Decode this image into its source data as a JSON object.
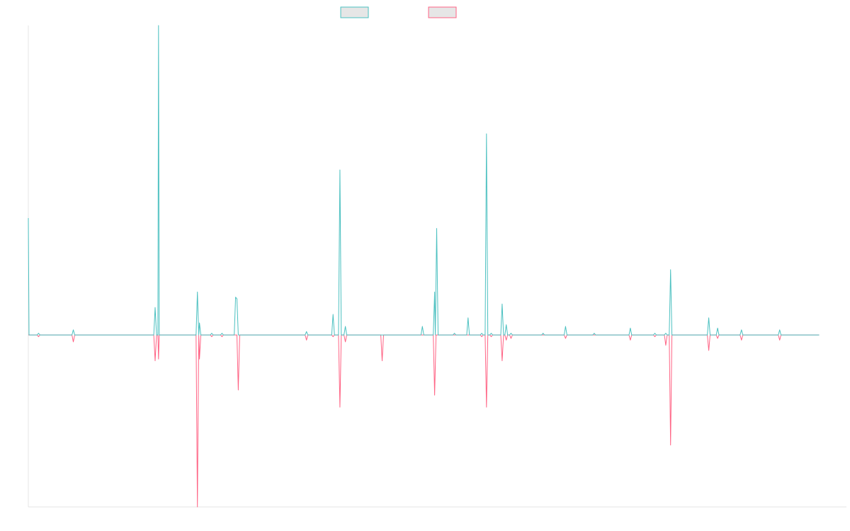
{
  "chart_data": {
    "type": "line",
    "legend_position": "top-center",
    "grid": false,
    "x_range": [
      0,
      1200
    ],
    "ylim": [
      -100,
      180
    ],
    "series": [
      {
        "key": "positive",
        "color": "#4bc0c0",
        "fill": "#e6e6e6",
        "points": [
          [
            0,
            68
          ],
          [
            1,
            0
          ],
          [
            13,
            0
          ],
          [
            15,
            1
          ],
          [
            17,
            0
          ],
          [
            64,
            0
          ],
          [
            66,
            3
          ],
          [
            68,
            0
          ],
          [
            184,
            0
          ],
          [
            186,
            16
          ],
          [
            188,
            0
          ],
          [
            190,
            0
          ],
          [
            191,
            180
          ],
          [
            192,
            0
          ],
          [
            194,
            0
          ],
          [
            246,
            0
          ],
          [
            248,
            25
          ],
          [
            250,
            0
          ],
          [
            251,
            7
          ],
          [
            253,
            0
          ],
          [
            267,
            0
          ],
          [
            269,
            1
          ],
          [
            271,
            0
          ],
          [
            282,
            0
          ],
          [
            284,
            1
          ],
          [
            286,
            0
          ],
          [
            302,
            0
          ],
          [
            304,
            22
          ],
          [
            306,
            21
          ],
          [
            308,
            0
          ],
          [
            406,
            0
          ],
          [
            408,
            2
          ],
          [
            410,
            0
          ],
          [
            445,
            0
          ],
          [
            447,
            12
          ],
          [
            449,
            0
          ],
          [
            455,
            0
          ],
          [
            457,
            96
          ],
          [
            459,
            0
          ],
          [
            463,
            0
          ],
          [
            465,
            5
          ],
          [
            467,
            0
          ],
          [
            576,
            0
          ],
          [
            578,
            5
          ],
          [
            580,
            0
          ],
          [
            594,
            0
          ],
          [
            596,
            25
          ],
          [
            597,
            0
          ],
          [
            599,
            62
          ],
          [
            601,
            0
          ],
          [
            623,
            0
          ],
          [
            625,
            1
          ],
          [
            627,
            0
          ],
          [
            643,
            0
          ],
          [
            645,
            10
          ],
          [
            647,
            0
          ],
          [
            663,
            0
          ],
          [
            665,
            1
          ],
          [
            667,
            0
          ],
          [
            670,
            0
          ],
          [
            672,
            117
          ],
          [
            674,
            0
          ],
          [
            677,
            0
          ],
          [
            679,
            1
          ],
          [
            681,
            0
          ],
          [
            693,
            0
          ],
          [
            695,
            18
          ],
          [
            697,
            0
          ],
          [
            699,
            0
          ],
          [
            701,
            6
          ],
          [
            703,
            0
          ],
          [
            706,
            0
          ],
          [
            708,
            1
          ],
          [
            710,
            0
          ],
          [
            753,
            0
          ],
          [
            755,
            1
          ],
          [
            757,
            0
          ],
          [
            786,
            0
          ],
          [
            788,
            5
          ],
          [
            790,
            0
          ],
          [
            828,
            0
          ],
          [
            830,
            1
          ],
          [
            832,
            0
          ],
          [
            881,
            0
          ],
          [
            883,
            4
          ],
          [
            885,
            0
          ],
          [
            917,
            0
          ],
          [
            919,
            1
          ],
          [
            921,
            0
          ],
          [
            933,
            0
          ],
          [
            935,
            1
          ],
          [
            937,
            0
          ],
          [
            940,
            0
          ],
          [
            942,
            38
          ],
          [
            944,
            0
          ],
          [
            996,
            0
          ],
          [
            998,
            10
          ],
          [
            1000,
            0
          ],
          [
            1009,
            0
          ],
          [
            1011,
            4
          ],
          [
            1013,
            0
          ],
          [
            1044,
            0
          ],
          [
            1046,
            3
          ],
          [
            1048,
            0
          ],
          [
            1100,
            0
          ],
          [
            1102,
            3
          ],
          [
            1104,
            0
          ],
          [
            1160,
            0
          ]
        ]
      },
      {
        "key": "negative",
        "color": "#ff6384",
        "fill": "#e6e6e6",
        "points": [
          [
            0,
            0
          ],
          [
            13,
            0
          ],
          [
            15,
            -1
          ],
          [
            17,
            0
          ],
          [
            64,
            0
          ],
          [
            66,
            -4
          ],
          [
            68,
            0
          ],
          [
            184,
            0
          ],
          [
            186,
            -15
          ],
          [
            188,
            0
          ],
          [
            190,
            0
          ],
          [
            191,
            -14
          ],
          [
            192,
            0
          ],
          [
            246,
            0
          ],
          [
            248,
            -100
          ],
          [
            250,
            0
          ],
          [
            251,
            -14
          ],
          [
            253,
            0
          ],
          [
            267,
            0
          ],
          [
            269,
            -1
          ],
          [
            271,
            0
          ],
          [
            282,
            0
          ],
          [
            284,
            -1
          ],
          [
            286,
            0
          ],
          [
            306,
            0
          ],
          [
            308,
            -32
          ],
          [
            310,
            0
          ],
          [
            406,
            0
          ],
          [
            408,
            -3
          ],
          [
            410,
            0
          ],
          [
            445,
            0
          ],
          [
            447,
            -1
          ],
          [
            449,
            0
          ],
          [
            455,
            0
          ],
          [
            457,
            -42
          ],
          [
            459,
            0
          ],
          [
            463,
            0
          ],
          [
            465,
            -4
          ],
          [
            467,
            0
          ],
          [
            517,
            0
          ],
          [
            519,
            -15
          ],
          [
            521,
            0
          ],
          [
            594,
            0
          ],
          [
            596,
            -35
          ],
          [
            598,
            0
          ],
          [
            663,
            0
          ],
          [
            665,
            -1
          ],
          [
            667,
            0
          ],
          [
            670,
            0
          ],
          [
            672,
            -42
          ],
          [
            674,
            0
          ],
          [
            677,
            0
          ],
          [
            679,
            -1
          ],
          [
            681,
            0
          ],
          [
            693,
            0
          ],
          [
            695,
            -15
          ],
          [
            697,
            0
          ],
          [
            699,
            0
          ],
          [
            701,
            -3
          ],
          [
            703,
            0
          ],
          [
            706,
            0
          ],
          [
            708,
            -2
          ],
          [
            710,
            0
          ],
          [
            786,
            0
          ],
          [
            788,
            -2
          ],
          [
            790,
            0
          ],
          [
            881,
            0
          ],
          [
            883,
            -3
          ],
          [
            885,
            0
          ],
          [
            917,
            0
          ],
          [
            919,
            -1
          ],
          [
            921,
            0
          ],
          [
            933,
            0
          ],
          [
            935,
            -6
          ],
          [
            937,
            0
          ],
          [
            940,
            0
          ],
          [
            942,
            -64
          ],
          [
            944,
            0
          ],
          [
            996,
            0
          ],
          [
            998,
            -9
          ],
          [
            1000,
            0
          ],
          [
            1009,
            0
          ],
          [
            1011,
            -2
          ],
          [
            1013,
            0
          ],
          [
            1044,
            0
          ],
          [
            1046,
            -3
          ],
          [
            1048,
            0
          ],
          [
            1100,
            0
          ],
          [
            1102,
            -3
          ],
          [
            1104,
            0
          ],
          [
            1160,
            0
          ]
        ]
      }
    ]
  }
}
